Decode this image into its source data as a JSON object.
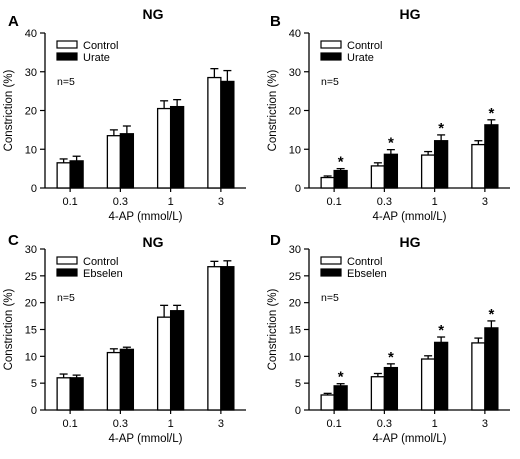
{
  "chart_data": [
    {
      "type": "bar",
      "panel": "A",
      "title": "NG",
      "xlabel": "4-AP (mmol/L)",
      "ylabel": "Constriction (%)",
      "categories": [
        "0.1",
        "0.3",
        "1",
        "3"
      ],
      "ylim": [
        0,
        40
      ],
      "yticks": [
        0,
        10,
        20,
        30,
        40
      ],
      "note": "n=5",
      "legend_position": "top-left",
      "series": [
        {
          "name": "Control",
          "color": "#ffffff",
          "values": [
            6.5,
            13.5,
            20.5,
            28.5
          ],
          "errors": [
            1.0,
            1.5,
            2.0,
            2.3
          ]
        },
        {
          "name": "Urate",
          "color": "#000000",
          "values": [
            7.0,
            14.0,
            21.0,
            27.5
          ],
          "errors": [
            1.2,
            2.0,
            1.8,
            2.8
          ]
        }
      ],
      "significance": [
        "",
        "",
        "",
        ""
      ]
    },
    {
      "type": "bar",
      "panel": "B",
      "title": "HG",
      "xlabel": "4-AP (mmol/L)",
      "ylabel": "Constriction (%)",
      "categories": [
        "0.1",
        "0.3",
        "1",
        "3"
      ],
      "ylim": [
        0,
        40
      ],
      "yticks": [
        0,
        10,
        20,
        30,
        40
      ],
      "note": "n=5",
      "legend_position": "top-left",
      "series": [
        {
          "name": "Control",
          "color": "#ffffff",
          "values": [
            2.7,
            5.7,
            8.5,
            11.2
          ],
          "errors": [
            0.4,
            0.8,
            0.9,
            1.0
          ]
        },
        {
          "name": "Urate",
          "color": "#000000",
          "values": [
            4.5,
            8.7,
            12.2,
            16.3
          ],
          "errors": [
            0.5,
            1.2,
            1.5,
            1.3
          ]
        }
      ],
      "significance": [
        "*",
        "*",
        "*",
        "*"
      ]
    },
    {
      "type": "bar",
      "panel": "C",
      "title": "NG",
      "xlabel": "4-AP (mmol/L)",
      "ylabel": "Constriction (%)",
      "categories": [
        "0.1",
        "0.3",
        "1",
        "3"
      ],
      "ylim": [
        0,
        30
      ],
      "yticks": [
        0,
        5,
        10,
        15,
        20,
        25,
        30
      ],
      "note": "n=5",
      "legend_position": "top-left",
      "series": [
        {
          "name": "Control",
          "color": "#ffffff",
          "values": [
            6.0,
            10.7,
            17.3,
            26.7
          ],
          "errors": [
            0.7,
            0.7,
            2.2,
            1.0
          ]
        },
        {
          "name": "Ebselen",
          "color": "#000000",
          "values": [
            6.0,
            11.3,
            18.5,
            26.7
          ],
          "errors": [
            0.5,
            0.4,
            1.0,
            1.1
          ]
        }
      ],
      "significance": [
        "",
        "",
        "",
        ""
      ]
    },
    {
      "type": "bar",
      "panel": "D",
      "title": "HG",
      "xlabel": "4-AP (mmol/L)",
      "ylabel": "Constriction (%)",
      "categories": [
        "0.1",
        "0.3",
        "1",
        "3"
      ],
      "ylim": [
        0,
        30
      ],
      "yticks": [
        0,
        5,
        10,
        15,
        20,
        25,
        30
      ],
      "note": "n=5",
      "legend_position": "top-left",
      "series": [
        {
          "name": "Control",
          "color": "#ffffff",
          "values": [
            2.8,
            6.2,
            9.5,
            12.5
          ],
          "errors": [
            0.3,
            0.6,
            0.6,
            0.9
          ]
        },
        {
          "name": "Ebselen",
          "color": "#000000",
          "values": [
            4.5,
            7.9,
            12.6,
            15.3
          ],
          "errors": [
            0.4,
            0.7,
            1.0,
            1.3
          ]
        }
      ],
      "significance": [
        "*",
        "*",
        "*",
        "*"
      ]
    }
  ]
}
